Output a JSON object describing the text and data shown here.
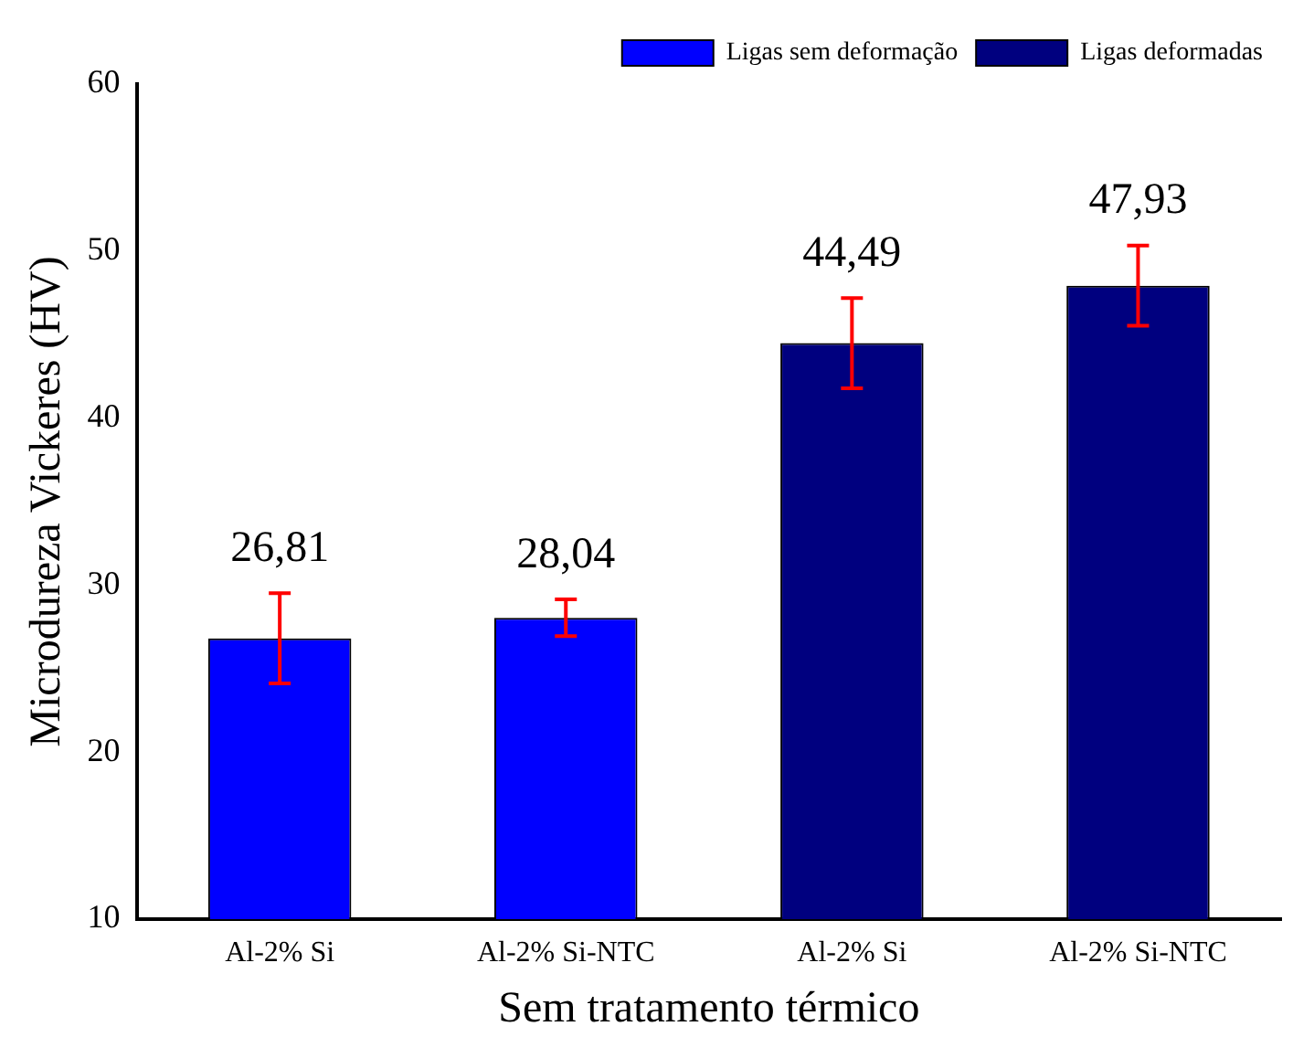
{
  "chart_data": {
    "type": "bar",
    "xlabel": "Sem tratamento térmico",
    "ylabel": "Microdureza Vickeres (HV)",
    "categories": [
      "Al-2% Si",
      "Al-2% Si-NTC",
      "Al-2% Si",
      "Al-2% Si-NTC"
    ],
    "series": [
      {
        "name": "Ligas sem deformação",
        "color": "#0000ff",
        "values": [
          26.81,
          28.04,
          null,
          null
        ],
        "errors": [
          2.7,
          1.1,
          null,
          null
        ],
        "value_labels": [
          "26,81",
          "28,04",
          null,
          null
        ]
      },
      {
        "name": "Ligas deformadas",
        "color": "#00007f",
        "values": [
          null,
          null,
          44.49,
          47.93
        ],
        "errors": [
          null,
          null,
          2.7,
          2.4
        ],
        "value_labels": [
          null,
          null,
          "44,49",
          "47,93"
        ]
      }
    ],
    "ylim": [
      10,
      60
    ],
    "yticks": [
      10,
      20,
      30,
      40,
      50,
      60
    ],
    "grid": false,
    "legend": "top right"
  }
}
